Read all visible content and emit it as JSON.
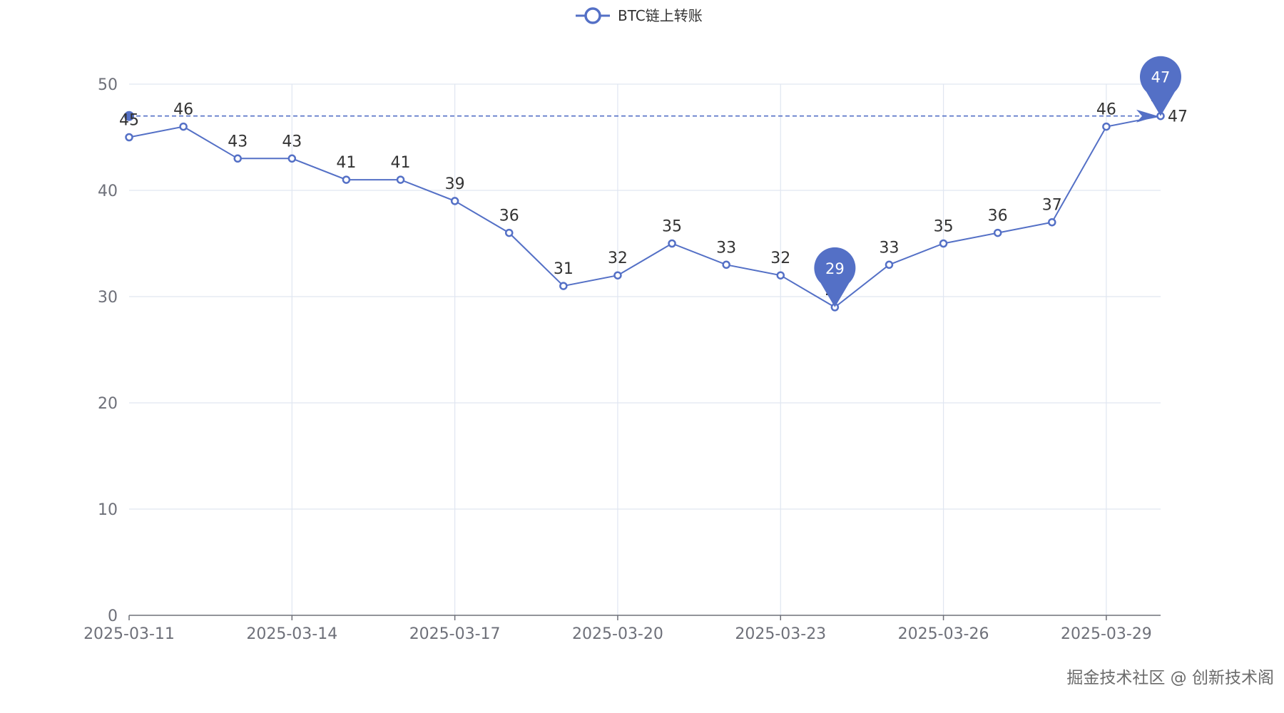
{
  "chart_data": {
    "type": "line",
    "series": [
      {
        "name": "BTC链上转账",
        "values": [
          45,
          46,
          43,
          43,
          41,
          41,
          39,
          36,
          31,
          32,
          35,
          33,
          32,
          29,
          33,
          35,
          36,
          37,
          46,
          47
        ]
      }
    ],
    "x": [
      "2025-03-11",
      "2025-03-12",
      "2025-03-13",
      "2025-03-14",
      "2025-03-15",
      "2025-03-16",
      "2025-03-17",
      "2025-03-18",
      "2025-03-19",
      "2025-03-20",
      "2025-03-21",
      "2025-03-22",
      "2025-03-23",
      "2025-03-24",
      "2025-03-25",
      "2025-03-26",
      "2025-03-27",
      "2025-03-28",
      "2025-03-29",
      "2025-03-30"
    ],
    "x_tick_labels": [
      "2025-03-11",
      "2025-03-14",
      "2025-03-17",
      "2025-03-20",
      "2025-03-23",
      "2025-03-26",
      "2025-03-29"
    ],
    "y_tick_labels": [
      "0",
      "10",
      "20",
      "30",
      "40",
      "50"
    ],
    "ylim": [
      0,
      50
    ],
    "grid": true,
    "legend_position": "top-center",
    "mark_points": {
      "max": 47,
      "min": 29
    },
    "mark_line": {
      "value": 47,
      "style": "dashed"
    },
    "color": "#5470c6"
  },
  "watermark": "掘金技术社区 @ 创新技术阁"
}
